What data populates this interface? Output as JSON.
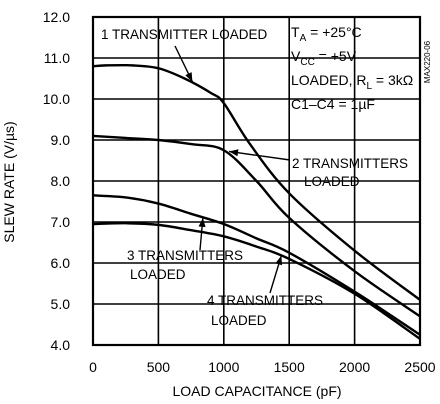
{
  "chart_data": {
    "type": "line",
    "xlabel": "LOAD CAPACITANCE (pF)",
    "ylabel": "SLEW RATE (V/µs)",
    "xlim": [
      0,
      2500
    ],
    "ylim": [
      4.0,
      12.0
    ],
    "x_ticks": [
      "0",
      "500",
      "1000",
      "1500",
      "2000",
      "2500"
    ],
    "y_ticks": [
      "4.0",
      "5.0",
      "6.0",
      "7.0",
      "8.0",
      "9.0",
      "10.0",
      "11.0",
      "12.0"
    ],
    "grid": true,
    "series": [
      {
        "name": "1 TRANSMITTER LOADED",
        "x": [
          0,
          100,
          300,
          500,
          700,
          900,
          1000,
          1200,
          1500,
          2000,
          2500
        ],
        "y": [
          10.8,
          10.82,
          10.82,
          10.75,
          10.5,
          10.15,
          9.9,
          8.9,
          7.7,
          6.3,
          5.1
        ]
      },
      {
        "name": "2 TRANSMITTERS LOADED",
        "x": [
          0,
          250,
          500,
          750,
          1000,
          1250,
          1500,
          2000,
          2500
        ],
        "y": [
          9.1,
          9.05,
          9.0,
          8.9,
          8.75,
          8.0,
          7.1,
          5.8,
          4.7
        ]
      },
      {
        "name": "3 TRANSMITTERS LOADED",
        "x": [
          0,
          250,
          500,
          750,
          1000,
          1250,
          1500,
          2000,
          2500
        ],
        "y": [
          7.65,
          7.6,
          7.45,
          7.2,
          6.95,
          6.6,
          6.25,
          5.3,
          4.25
        ]
      },
      {
        "name": "4 TRANSMITTERS LOADED",
        "x": [
          0,
          250,
          500,
          750,
          1000,
          1250,
          1500,
          2000,
          2500
        ],
        "y": [
          6.95,
          6.97,
          6.93,
          6.8,
          6.65,
          6.4,
          6.1,
          5.25,
          4.15
        ]
      }
    ],
    "annotations": {
      "a1": "1 TRANSMITTER LOADED",
      "a2_line1": "2 TRANSMITTERS",
      "a2_line2": "LOADED",
      "a3_line1": "3 TRANSMITTERS",
      "a3_line2": "LOADED",
      "a4_line1": "4 TRANSMITTERS",
      "a4_line2": "LOADED"
    },
    "conditions": {
      "ta_main": "T",
      "ta_sub": "A",
      "ta_rest": " = +25°C",
      "vcc_main": "V",
      "vcc_sub": "CC",
      "vcc_rest": " = +5V",
      "rl_main": "LOADED, R",
      "rl_sub": "L",
      "rl_rest": " = 3kΩ",
      "cap": "C1–C4 = 1µF"
    },
    "watermark": "MAX220-06"
  }
}
